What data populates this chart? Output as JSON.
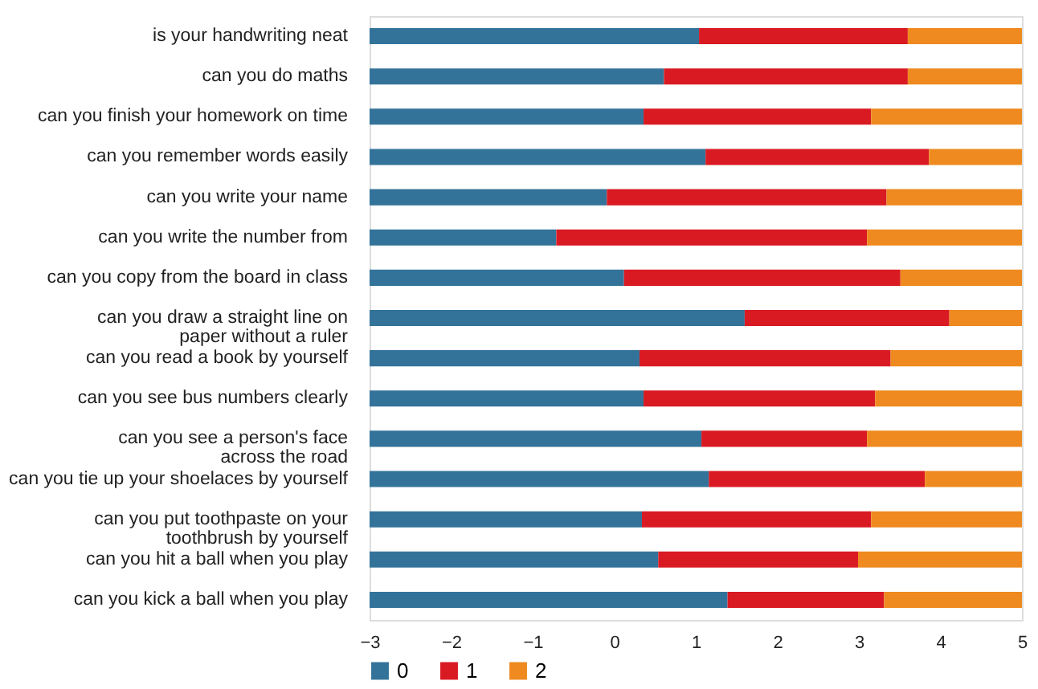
{
  "chart_data": {
    "type": "bar",
    "orientation": "horizontal",
    "categories": [
      "is your handwriting neat",
      "can you do maths",
      "can you finish your homework on time",
      "can you remember words easily",
      "can you write your name",
      "can you write the number from ",
      "can you copy from the board in class",
      "can you draw a straight line on\npaper without a ruler",
      "can you read a book by yourself",
      "can you see bus numbers clearly",
      "can you see a person's face\nacross the road",
      "can you tie up your shoelaces by yourself",
      "can you put toothpaste on your\ntoothbrush by yourself",
      "can you hit a ball when you play",
      "can you kick a ball when you play"
    ],
    "series": [
      {
        "name": "0",
        "color": "#33739a",
        "base": [
          -3,
          -3,
          -3,
          -3,
          -3,
          -3,
          -3,
          -3,
          -3,
          -3,
          -3,
          -3,
          -3,
          -3,
          -3
        ],
        "values": [
          4.04,
          3.61,
          3.36,
          4.12,
          2.91,
          2.29,
          3.12,
          4.6,
          3.31,
          3.36,
          4.07,
          4.16,
          3.34,
          3.54,
          4.39
        ]
      },
      {
        "name": "1",
        "color": "#d91a22",
        "base": [
          1.04,
          0.61,
          0.36,
          1.12,
          -0.09,
          -0.71,
          0.12,
          1.6,
          0.31,
          0.36,
          1.07,
          1.16,
          0.34,
          0.54,
          1.39
        ],
        "values": [
          2.56,
          2.99,
          2.79,
          2.74,
          3.43,
          3.81,
          3.39,
          2.51,
          3.08,
          2.84,
          2.03,
          2.65,
          2.81,
          2.45,
          1.92
        ]
      },
      {
        "name": "2",
        "color": "#ee8a1f",
        "base": [
          3.6,
          3.6,
          3.15,
          3.86,
          3.34,
          3.1,
          3.51,
          4.11,
          3.39,
          3.2,
          3.1,
          3.81,
          3.15,
          2.99,
          3.31
        ],
        "values": [
          1.4,
          1.4,
          1.85,
          1.14,
          1.66,
          1.9,
          1.49,
          0.89,
          1.61,
          1.8,
          1.9,
          1.19,
          1.85,
          2.01,
          1.69
        ]
      }
    ],
    "xlim": [
      -3,
      5
    ],
    "xticks": [
      -3,
      -2,
      -1,
      0,
      1,
      2,
      3,
      4,
      5
    ],
    "grid": false,
    "legend": "bottom"
  }
}
